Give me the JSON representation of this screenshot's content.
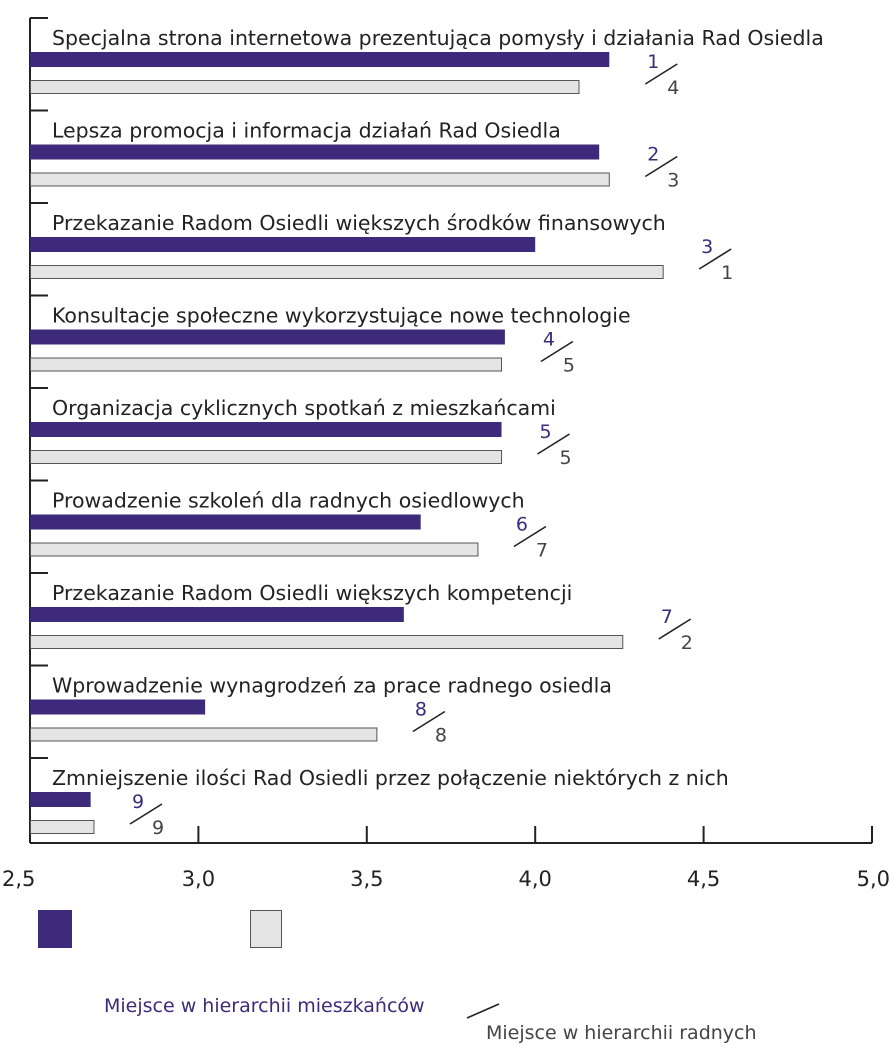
{
  "colors": {
    "residents": "#3d2a7a",
    "councillors": "#e4e4e4",
    "councillors_border": "#555555",
    "axis": "#222222"
  },
  "chart_data": {
    "type": "bar",
    "orientation": "horizontal",
    "title": "",
    "xlabel": "",
    "ylabel": "",
    "xlim": [
      2.5,
      5.0
    ],
    "x_ticks": [
      2.5,
      3.0,
      3.5,
      4.0,
      4.5,
      5.0
    ],
    "x_tick_labels": [
      "2,5",
      "3,0",
      "3,5",
      "4,0",
      "4,5",
      "5,0"
    ],
    "categories": [
      "Specjalna strona internetowa prezentująca pomysły i działania Rad Osiedla",
      "Lepsza promocja i informacja działań Rad Osiedla",
      "Przekazanie Radom Osiedli większych środków finansowych",
      "Konsultacje społeczne wykorzystujące nowe technologie",
      "Organizacja cyklicznych spotkań z mieszkańcami",
      "Prowadzenie szkoleń dla radnych osiedlowych",
      "Przekazanie Radom Osiedli większych kompetencji",
      "Wprowadzenie wynagrodzeń za prace radnego osiedla",
      "Zmniejszenie ilości Rad Osiedli przez połączenie niektórych z nich"
    ],
    "series": [
      {
        "name": "Miejsce w hierarchii mieszkańców",
        "values": [
          4.22,
          4.19,
          4.0,
          3.91,
          3.9,
          3.66,
          3.61,
          3.02,
          2.68
        ]
      },
      {
        "name": "Miejsce w hierarchii radnych",
        "values": [
          4.13,
          4.22,
          4.38,
          3.9,
          3.9,
          3.83,
          4.26,
          3.53,
          2.69
        ]
      }
    ],
    "rank_residents": [
      "1",
      "2",
      "3",
      "4",
      "5",
      "6",
      "7",
      "8",
      "9"
    ],
    "rank_councillors": [
      "4",
      "3",
      "1",
      "5",
      "5",
      "7",
      "2",
      "8",
      "9"
    ],
    "legend_position": "bottom"
  }
}
